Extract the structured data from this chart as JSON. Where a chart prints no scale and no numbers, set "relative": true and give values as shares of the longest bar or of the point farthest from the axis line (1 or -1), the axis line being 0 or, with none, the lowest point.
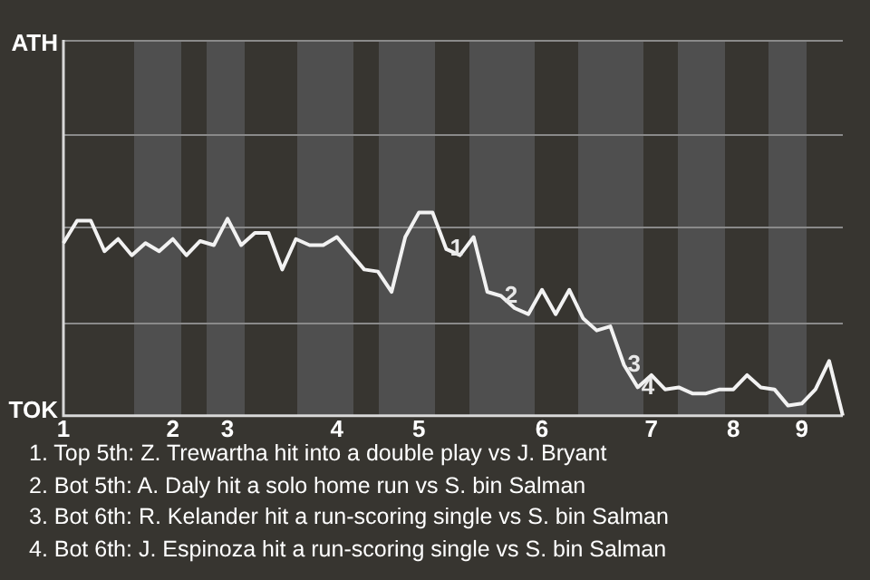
{
  "chart_data": {
    "type": "line",
    "relative": true,
    "categories": [
      "1",
      null,
      null,
      null,
      null,
      null,
      null,
      null,
      "2",
      null,
      null,
      null,
      "3",
      null,
      null,
      null,
      null,
      null,
      null,
      null,
      "4",
      null,
      null,
      null,
      null,
      null,
      "5",
      null,
      null,
      null,
      null,
      null,
      null,
      null,
      null,
      "6",
      null,
      null,
      null,
      null,
      null,
      null,
      null,
      "7",
      null,
      null,
      null,
      null,
      null,
      "8",
      null,
      null,
      null,
      null,
      "9",
      null,
      null,
      null
    ],
    "series": [
      {
        "color": "#f2f2f2",
        "values": [
          0.85,
          0.96,
          0.96,
          0.81,
          0.87,
          0.79,
          0.85,
          0.81,
          0.87,
          0.79,
          0.86,
          0.84,
          0.97,
          0.84,
          0.9,
          0.9,
          0.72,
          0.87,
          0.84,
          0.84,
          0.88,
          0.8,
          0.72,
          0.71,
          0.61,
          0.88,
          1,
          1,
          0.82,
          0.79,
          0.88,
          0.61,
          0.59,
          0.53,
          0.5,
          0.62,
          0.5,
          0.62,
          0.48,
          0.42,
          0.44,
          0.25,
          0.14,
          0.2,
          0.13,
          0.14,
          0.11,
          0.11,
          0.13,
          0.13,
          0.2,
          0.14,
          0.13,
          0.05,
          0.06,
          0.13,
          0.27,
          0
        ]
      }
    ],
    "marker": "none",
    "line_style": "solid",
    "legend": false,
    "ref_lines": [
      {
        "axis": "y",
        "value": 0.46,
        "color": "#8a8a8a"
      },
      {
        "axis": "y",
        "value": 0.93,
        "color": "#8a8a8a"
      },
      {
        "axis": "y",
        "value": 1.39,
        "color": "#8a8a8a"
      },
      {
        "axis": "y",
        "value": 1.85,
        "color": "#8a8a8a"
      }
    ],
    "annotations": [
      "ATH",
      "TOK",
      {
        "text": "1",
        "y": 0.82
      },
      {
        "text": "2",
        "y": 0.59
      },
      {
        "text": "3",
        "y": 0.25
      },
      {
        "text": "4",
        "y": 0.14
      },
      "1. Top 5th: Z. Trewartha hit into a double play vs J. Bryant",
      "2. Bot 5th: A. Daly hit a solo home run vs S. bin Salman",
      "3. Bot 6th: R. Kelander hit a run-scoring single vs S. bin Salman",
      "4. Bot 6th: J. Espinoza hit a run-scoring single vs S. bin Salman"
    ]
  }
}
